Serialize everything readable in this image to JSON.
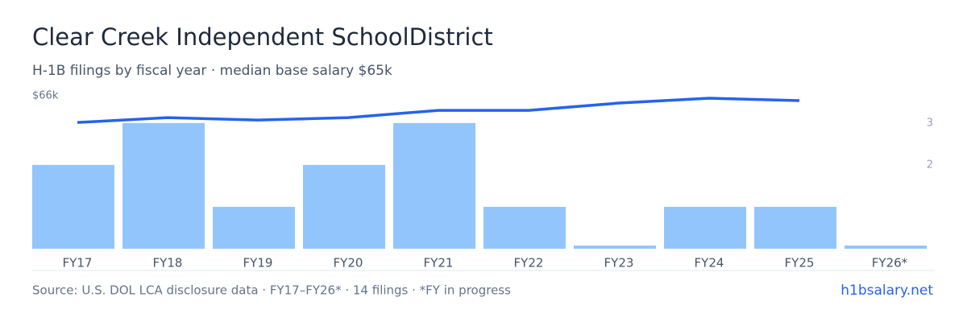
{
  "header": {
    "title": "Clear Creek Independent SchoolDistrict",
    "subtitle": "H-1B filings by fiscal year · median base salary $65k"
  },
  "chart_data": {
    "type": "bar",
    "categories": [
      "FY17",
      "FY18",
      "FY19",
      "FY20",
      "FY21",
      "FY22",
      "FY23",
      "FY24",
      "FY25",
      "FY26*"
    ],
    "series": [
      {
        "name": "H-1B filings",
        "type": "bar",
        "axis": "y2",
        "color": "#93c5fd",
        "values": [
          2,
          3,
          1,
          2,
          3,
          1,
          0,
          1,
          1,
          0
        ]
      },
      {
        "name": "Median base salary",
        "type": "line",
        "axis": "y",
        "color": "#2563eb",
        "values": [
          64.9,
          65.1,
          65.0,
          65.1,
          65.4,
          65.4,
          65.7,
          65.9,
          65.8,
          null
        ]
      }
    ],
    "ylim": [
      59.7,
      66
    ],
    "yticks": [
      {
        "value": 66,
        "label": "$66k"
      }
    ],
    "y2lim": [
      0,
      3.65
    ],
    "y2ticks": [
      2,
      3
    ]
  },
  "footer": {
    "source": "Source: U.S. DOL LCA disclosure data · FY17–FY26* · 14 filings · *FY in progress",
    "link": "h1bsalary.net"
  }
}
